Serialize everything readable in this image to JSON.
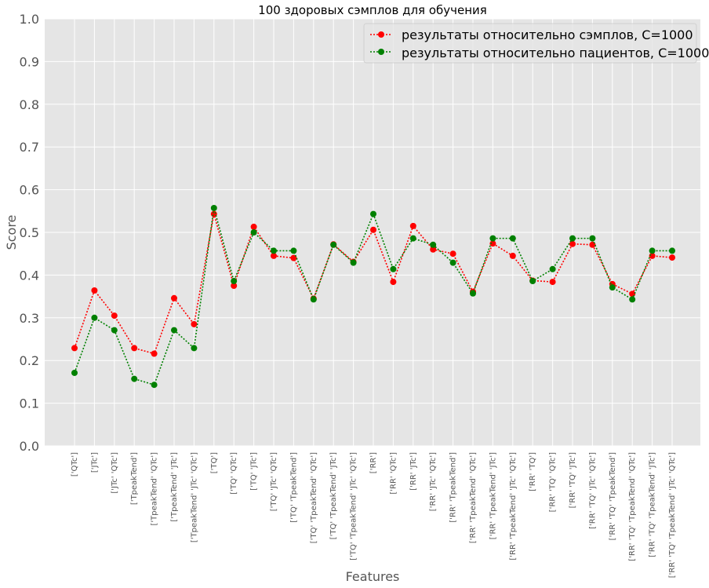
{
  "chart_data": {
    "type": "line",
    "title": "100 здоровых сэмплов для обучения",
    "xlabel": "Features",
    "ylabel": "Score",
    "ylim": [
      0.0,
      1.0
    ],
    "yticks": [
      "0.0",
      "0.1",
      "0.2",
      "0.3",
      "0.4",
      "0.5",
      "0.6",
      "0.7",
      "0.8",
      "0.9",
      "1.0"
    ],
    "grid": true,
    "legend_position": "top-right",
    "categories": [
      "['QTc']",
      "['JTc']",
      "['JTc' 'QTc']",
      "['TpeakTend']",
      "['TpeakTend' 'QTc']",
      "['TpeakTend' 'JTc']",
      "['TpeakTend' 'JTc' 'QTc']",
      "['TQ']",
      "['TQ' 'QTc']",
      "['TQ' 'JTc']",
      "['TQ' 'JTc' 'QTc']",
      "['TQ' 'TpeakTend']",
      "['TQ' 'TpeakTend' 'QTc']",
      "['TQ' 'TpeakTend' 'JTc']",
      "['TQ' 'TpeakTend' 'JTc' 'QTc']",
      "['RR']",
      "['RR' 'QTc']",
      "['RR' 'JTc']",
      "['RR' 'JTc' 'QTc']",
      "['RR' 'TpeakTend']",
      "['RR' 'TpeakTend' 'QTc']",
      "['RR' 'TpeakTend' 'JTc']",
      "['RR' 'TpeakTend' 'JTc' 'QTc']",
      "['RR' 'TQ']",
      "['RR' 'TQ' 'QTc']",
      "['RR' 'TQ' 'JTc']",
      "['RR' 'TQ' 'JTc' 'QTc']",
      "['RR' 'TQ' 'TpeakTend']",
      "['RR' 'TQ' 'TpeakTend' 'QTc']",
      "['RR' 'TQ' 'TpeakTend' 'JTc']",
      "['RR' 'TQ' 'TpeakTend' 'JTc' 'QTc']"
    ],
    "series": [
      {
        "name": "результаты относительно сэмплов, C=1000",
        "color": "#ff0000",
        "values": [
          0.229,
          0.364,
          0.305,
          0.229,
          0.216,
          0.346,
          0.285,
          0.543,
          0.375,
          0.513,
          0.445,
          0.44,
          0.345,
          0.472,
          0.431,
          0.506,
          0.384,
          0.515,
          0.46,
          0.45,
          0.361,
          0.474,
          0.445,
          0.387,
          0.384,
          0.473,
          0.471,
          0.379,
          0.356,
          0.445,
          0.441
        ]
      },
      {
        "name": "результаты относительно пациентов, C=1000",
        "color": "#008000",
        "values": [
          0.171,
          0.3,
          0.271,
          0.157,
          0.143,
          0.271,
          0.229,
          0.557,
          0.386,
          0.5,
          0.457,
          0.457,
          0.343,
          0.471,
          0.429,
          0.543,
          0.414,
          0.486,
          0.471,
          0.429,
          0.357,
          0.486,
          0.486,
          0.386,
          0.414,
          0.486,
          0.486,
          0.371,
          0.343,
          0.457,
          0.457
        ]
      }
    ]
  }
}
